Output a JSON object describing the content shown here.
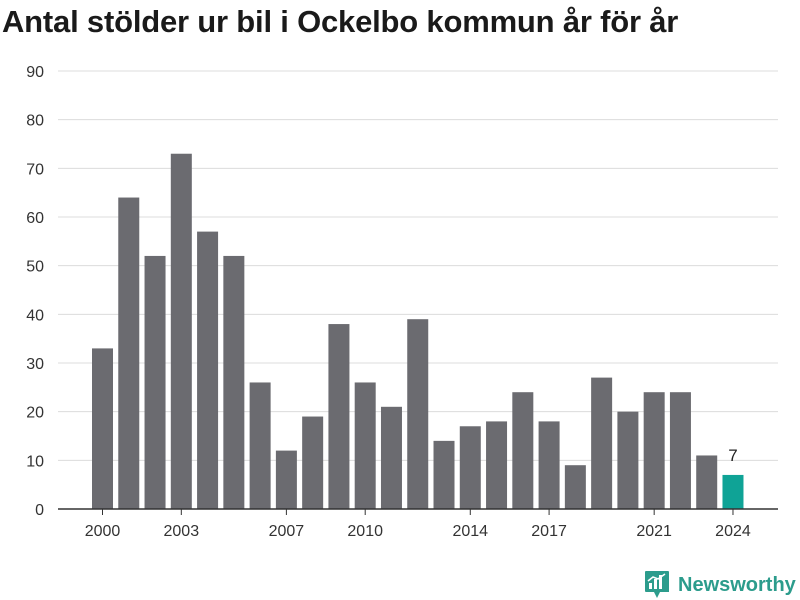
{
  "chart_data": {
    "type": "bar",
    "title": "Antal stölder ur bil i Ockelbo kommun år för år",
    "xlabel": "",
    "ylabel": "",
    "categories": [
      2000,
      2001,
      2002,
      2003,
      2004,
      2005,
      2006,
      2007,
      2008,
      2009,
      2010,
      2011,
      2012,
      2013,
      2014,
      2015,
      2016,
      2017,
      2018,
      2019,
      2020,
      2021,
      2022,
      2023,
      2024
    ],
    "values": [
      33,
      64,
      52,
      73,
      57,
      52,
      26,
      12,
      19,
      38,
      26,
      21,
      39,
      14,
      17,
      18,
      24,
      18,
      9,
      27,
      20,
      24,
      24,
      11,
      7
    ],
    "x_tick_labels": [
      "2000",
      "2003",
      "2007",
      "2010",
      "2014",
      "2017",
      "2021",
      "2024"
    ],
    "y_ticks": [
      0,
      10,
      20,
      30,
      40,
      50,
      60,
      70,
      80,
      90
    ],
    "ylim": [
      0,
      90
    ],
    "grid": true,
    "legend": "none",
    "highlight": {
      "category": 2024,
      "label": "7"
    },
    "colors": {
      "bar": "#6b6b70",
      "highlight": "#0fa396",
      "grid": "#dcdcdc",
      "axis": "#333333"
    }
  },
  "branding": {
    "name": "Newsworthy",
    "icon": "newsworthy-logo-icon",
    "color": "#2c9c8c"
  }
}
